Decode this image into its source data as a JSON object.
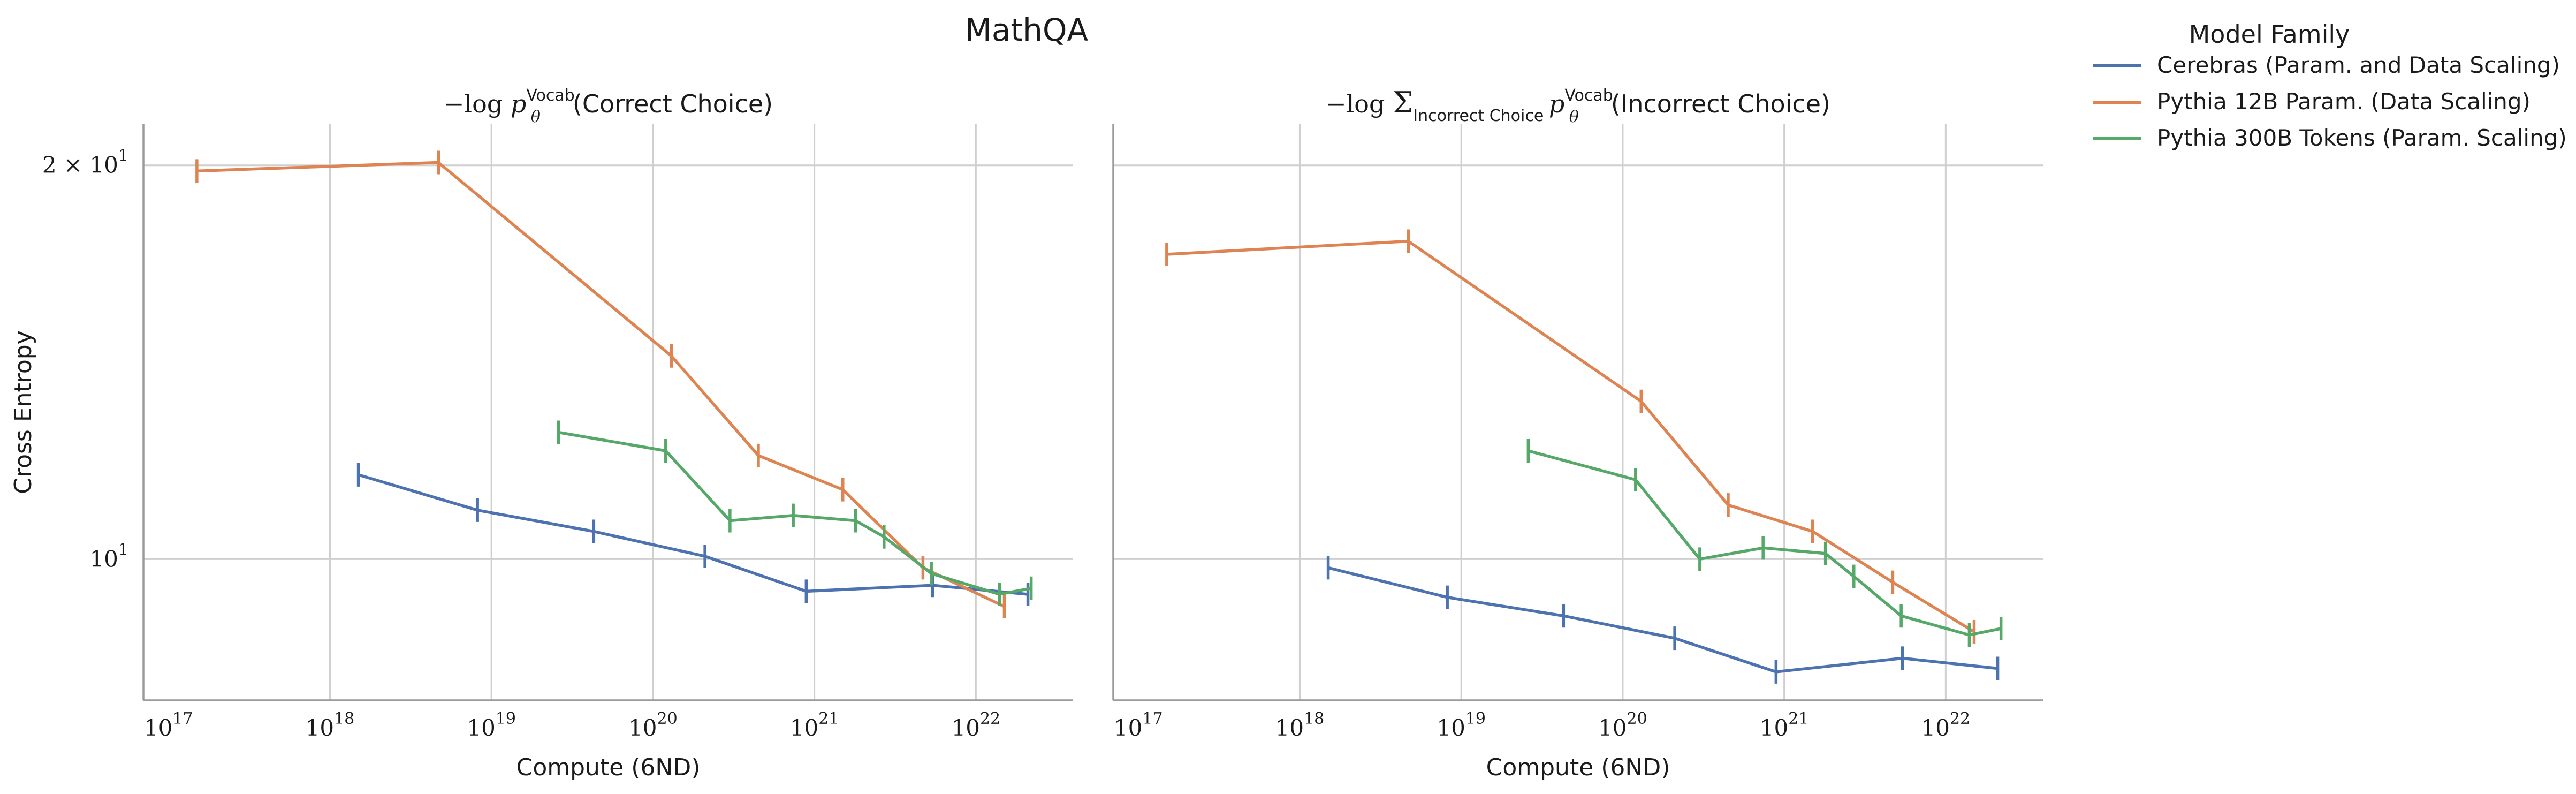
{
  "figure_title": "MathQA",
  "chart_data": [
    {
      "type": "line",
      "title": "−log p_θ^Vocab(Correct Choice)",
      "xlabel": "Compute (6ND)",
      "ylabel": "Cross Entropy",
      "x_scale": "log",
      "y_scale": "log",
      "xlim": [
        7e+16,
        4e+22
      ],
      "ylim": [
        7.8,
        21.5
      ],
      "x_ticks": [
        {
          "value": 1e+17,
          "label": "10^17"
        },
        {
          "value": 1e+18,
          "label": "10^18"
        },
        {
          "value": 1e+19,
          "label": "10^19"
        },
        {
          "value": 1e+20,
          "label": "10^20"
        },
        {
          "value": 1e+21,
          "label": "10^21"
        },
        {
          "value": 1e+22,
          "label": "10^22"
        }
      ],
      "y_ticks": [
        {
          "value": 10,
          "label": "10^1"
        },
        {
          "value": 20,
          "label": "2 × 10^1"
        }
      ],
      "grid": true,
      "series": [
        {
          "name": "Cerebras (Param. and Data Scaling)",
          "x": [
            1.5e+18,
            8.2e+18,
            4.3e+19,
            2.1e+20,
            8.9e+20,
            5.4e+21,
            2.1e+22
          ],
          "y": [
            11.6,
            10.9,
            10.5,
            10.05,
            9.45,
            9.55,
            9.4
          ]
        },
        {
          "name": "Pythia 12B Param. (Data Scaling)",
          "x": [
            1.5e+17,
            4.7e+18,
            1.3e+20,
            4.5e+20,
            1.5e+21,
            4.7e+21,
            1.5e+22
          ],
          "y": [
            19.8,
            20.1,
            14.3,
            12.0,
            11.3,
            9.85,
            9.2
          ]
        },
        {
          "name": "Pythia 300B Tokens (Param. Scaling)",
          "x": [
            2.6e+19,
            1.2e+20,
            3e+20,
            7.4e+20,
            1.8e+21,
            2.7e+21,
            5.3e+21,
            1.4e+22,
            2.2e+22
          ],
          "y": [
            12.5,
            12.1,
            10.7,
            10.8,
            10.7,
            10.4,
            9.75,
            9.4,
            9.5
          ]
        }
      ]
    },
    {
      "type": "line",
      "title": "−log Σ_Incorrect Choice p_θ^Vocab(Incorrect Choice)",
      "xlabel": "Compute (6ND)",
      "ylabel": "",
      "x_scale": "log",
      "y_scale": "log",
      "xlim": [
        7e+16,
        4e+22
      ],
      "ylim": [
        7.8,
        21.5
      ],
      "x_ticks": [
        {
          "value": 1e+17,
          "label": "10^17"
        },
        {
          "value": 1e+18,
          "label": "10^18"
        },
        {
          "value": 1e+19,
          "label": "10^19"
        },
        {
          "value": 1e+20,
          "label": "10^20"
        },
        {
          "value": 1e+21,
          "label": "10^21"
        },
        {
          "value": 1e+22,
          "label": "10^22"
        }
      ],
      "y_ticks": [
        {
          "value": 10,
          "label": ""
        },
        {
          "value": 20,
          "label": ""
        }
      ],
      "grid": true,
      "series": [
        {
          "name": "Cerebras (Param. and Data Scaling)",
          "x": [
            1.5e+18,
            8.2e+18,
            4.3e+19,
            2.1e+20,
            8.9e+20,
            5.4e+21,
            2.1e+22
          ],
          "y": [
            9.85,
            9.35,
            9.05,
            8.7,
            8.2,
            8.4,
            8.25
          ]
        },
        {
          "name": "Pythia 12B Param. (Data Scaling)",
          "x": [
            1.5e+17,
            4.7e+18,
            1.3e+20,
            4.5e+20,
            1.5e+21,
            4.7e+21,
            1.5e+22
          ],
          "y": [
            17.1,
            17.5,
            13.2,
            11.0,
            10.5,
            9.6,
            8.8
          ]
        },
        {
          "name": "Pythia 300B Tokens (Param. Scaling)",
          "x": [
            2.6e+19,
            1.2e+20,
            3e+20,
            7.4e+20,
            1.8e+21,
            2.7e+21,
            5.3e+21,
            1.4e+22,
            2.2e+22
          ],
          "y": [
            12.1,
            11.5,
            10.0,
            10.2,
            10.1,
            9.7,
            9.05,
            8.75,
            8.85
          ]
        }
      ]
    }
  ],
  "legend": {
    "title": "Model Family",
    "placement": "outside-right",
    "entries": [
      {
        "label": "Cerebras (Param. and Data Scaling)",
        "color": "#4c72b0"
      },
      {
        "label": "Pythia 12B Param. (Data Scaling)",
        "color": "#dd8452"
      },
      {
        "label": "Pythia 300B Tokens (Param. Scaling)",
        "color": "#55a868"
      }
    ]
  },
  "colors": {
    "grid": "#cfcfcf",
    "axis": "#9a9a9a"
  }
}
